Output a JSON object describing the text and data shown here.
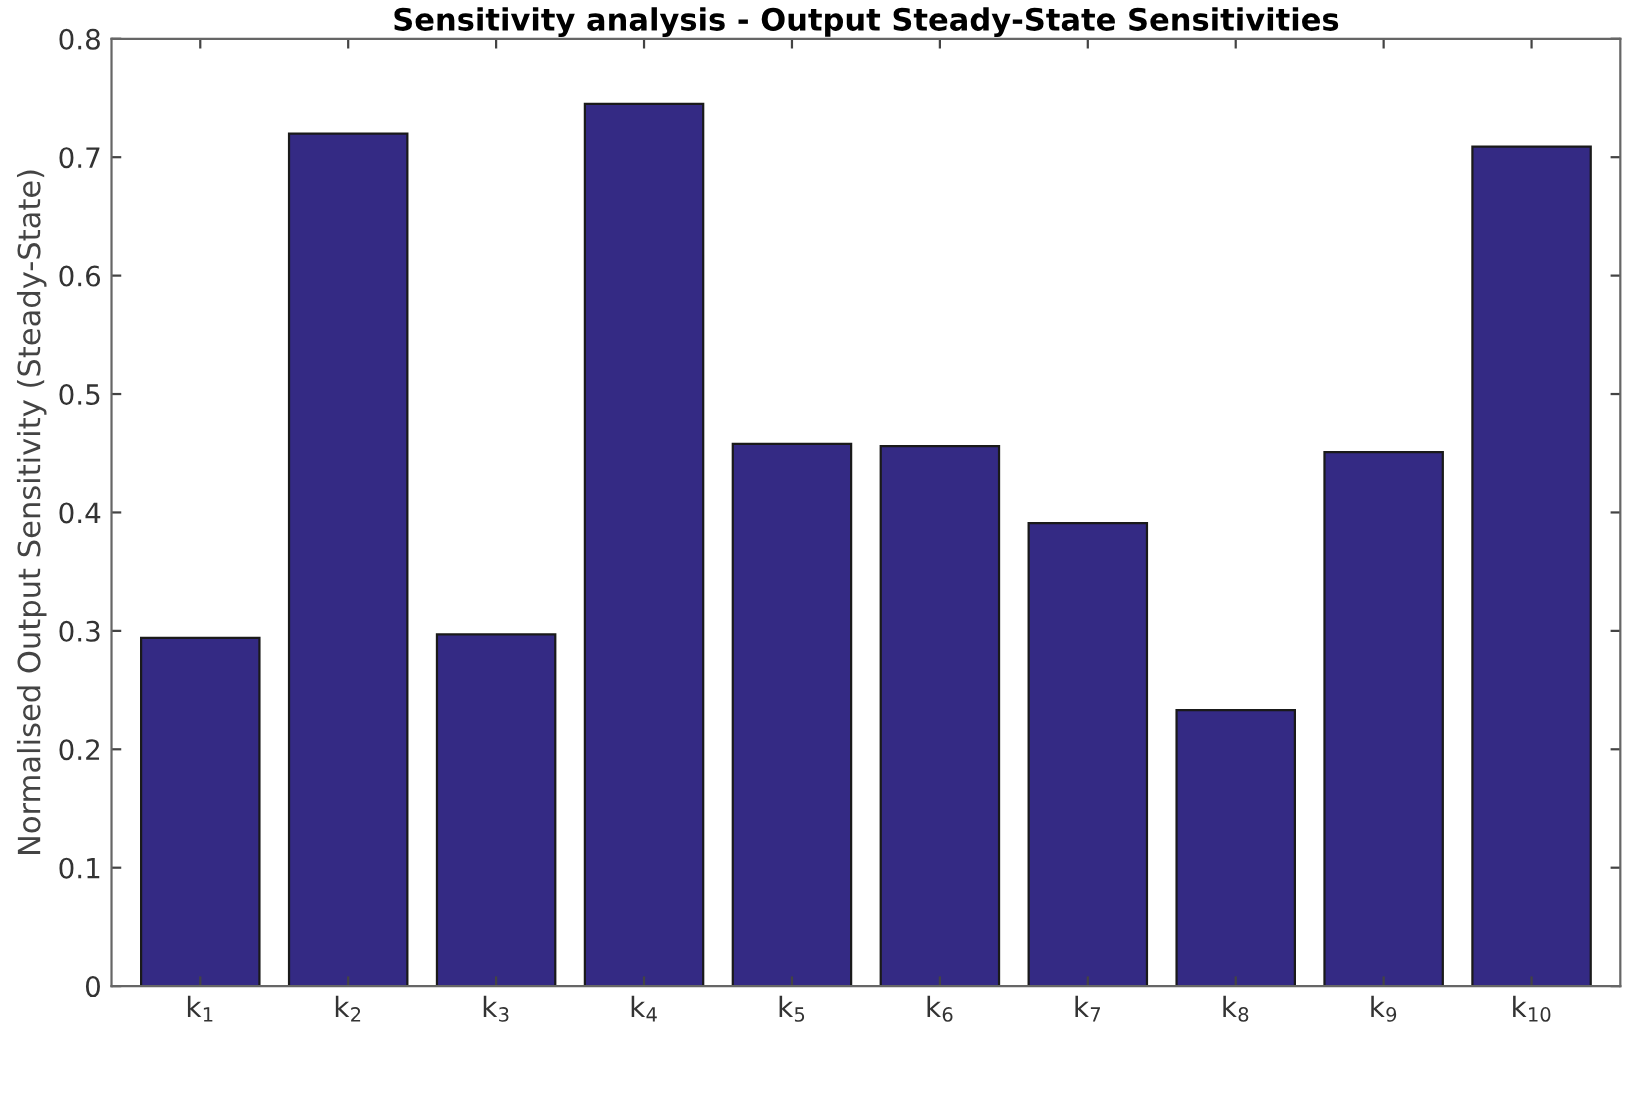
{
  "chart_data": {
    "type": "bar",
    "title": "Sensitivity analysis - Output Steady-State Sensitivities",
    "ylabel": "Normalised Output Sensitivity (Steady-State)",
    "categories": [
      "k$_{1}$",
      "k$_{2}$",
      "k$_{3}$",
      "k$_{4}$",
      "k$_{5}$",
      "k$_{6}$",
      "k$_{7}$",
      "k$_{8}$",
      "k$_{9}$",
      "k$_{10}$"
    ],
    "values": [
      0.294,
      0.72,
      0.297,
      0.745,
      0.458,
      0.456,
      0.391,
      0.233,
      0.451,
      0.709
    ],
    "color": "#342a84",
    "ylim": [
      0,
      0.8
    ],
    "yticks": [
      0,
      0.1,
      0.2,
      0.3,
      0.4,
      0.5,
      0.6,
      0.7,
      0.8
    ],
    "grid": false
  }
}
